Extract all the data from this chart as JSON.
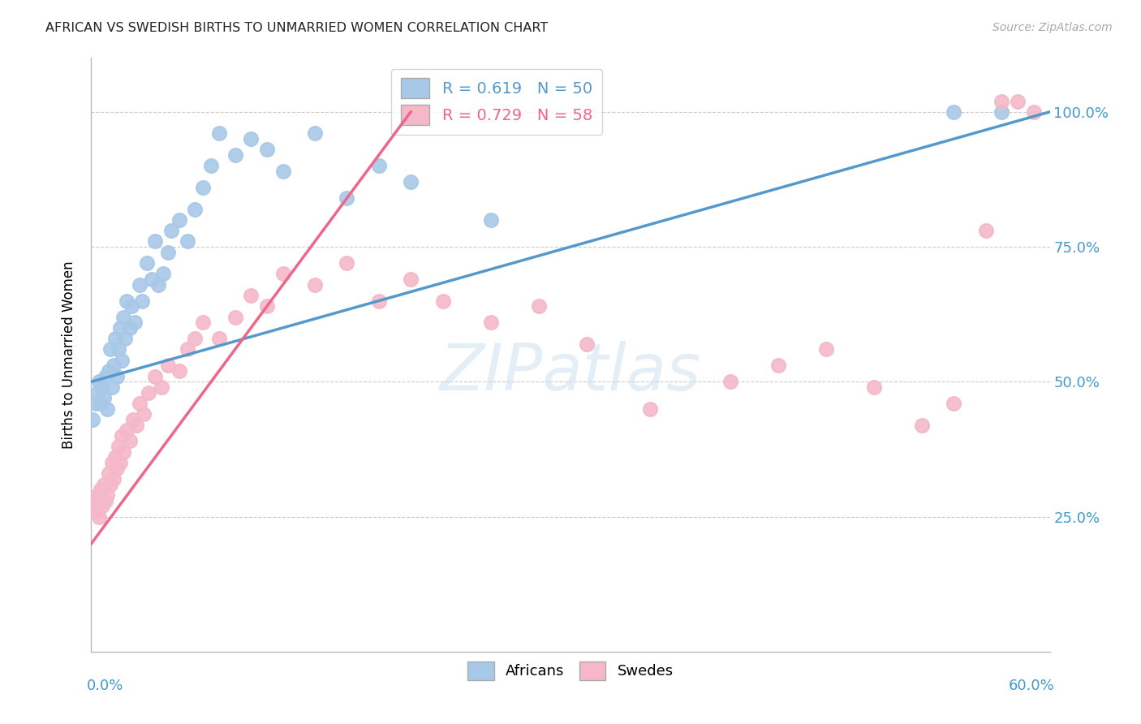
{
  "title": "AFRICAN VS SWEDISH BIRTHS TO UNMARRIED WOMEN CORRELATION CHART",
  "source": "Source: ZipAtlas.com",
  "ylabel": "Births to Unmarried Women",
  "watermark": "ZIPatlas",
  "african_color": "#a8c8e8",
  "swedish_color": "#f4b8c8",
  "line_african_color": "#5599cc",
  "line_swedish_color": "#ee6688",
  "xmin": 0.0,
  "xmax": 0.6,
  "ymin": 0.0,
  "ymax": 1.1,
  "african_x": [
    0.001,
    0.003,
    0.004,
    0.005,
    0.006,
    0.007,
    0.008,
    0.009,
    0.01,
    0.011,
    0.012,
    0.013,
    0.014,
    0.015,
    0.016,
    0.017,
    0.018,
    0.019,
    0.02,
    0.021,
    0.022,
    0.024,
    0.025,
    0.027,
    0.03,
    0.032,
    0.035,
    0.038,
    0.04,
    0.042,
    0.045,
    0.048,
    0.05,
    0.055,
    0.06,
    0.065,
    0.07,
    0.075,
    0.08,
    0.09,
    0.1,
    0.11,
    0.12,
    0.14,
    0.16,
    0.18,
    0.2,
    0.25,
    0.54,
    0.57
  ],
  "african_y": [
    0.43,
    0.46,
    0.48,
    0.5,
    0.46,
    0.49,
    0.47,
    0.51,
    0.45,
    0.52,
    0.56,
    0.49,
    0.53,
    0.58,
    0.51,
    0.56,
    0.6,
    0.54,
    0.62,
    0.58,
    0.65,
    0.6,
    0.64,
    0.61,
    0.68,
    0.65,
    0.72,
    0.69,
    0.76,
    0.68,
    0.7,
    0.74,
    0.78,
    0.8,
    0.76,
    0.82,
    0.86,
    0.9,
    0.96,
    0.92,
    0.95,
    0.93,
    0.89,
    0.96,
    0.84,
    0.9,
    0.87,
    0.8,
    1.0,
    1.0
  ],
  "swedish_x": [
    0.001,
    0.002,
    0.003,
    0.004,
    0.005,
    0.006,
    0.007,
    0.008,
    0.009,
    0.01,
    0.011,
    0.012,
    0.013,
    0.014,
    0.015,
    0.016,
    0.017,
    0.018,
    0.019,
    0.02,
    0.022,
    0.024,
    0.026,
    0.028,
    0.03,
    0.033,
    0.036,
    0.04,
    0.044,
    0.048,
    0.055,
    0.06,
    0.065,
    0.07,
    0.08,
    0.09,
    0.1,
    0.11,
    0.12,
    0.14,
    0.16,
    0.18,
    0.2,
    0.22,
    0.25,
    0.28,
    0.31,
    0.35,
    0.4,
    0.43,
    0.46,
    0.49,
    0.52,
    0.54,
    0.56,
    0.57,
    0.58,
    0.59
  ],
  "swedish_y": [
    0.28,
    0.27,
    0.26,
    0.29,
    0.25,
    0.3,
    0.27,
    0.31,
    0.28,
    0.29,
    0.33,
    0.31,
    0.35,
    0.32,
    0.36,
    0.34,
    0.38,
    0.35,
    0.4,
    0.37,
    0.41,
    0.39,
    0.43,
    0.42,
    0.46,
    0.44,
    0.48,
    0.51,
    0.49,
    0.53,
    0.52,
    0.56,
    0.58,
    0.61,
    0.58,
    0.62,
    0.66,
    0.64,
    0.7,
    0.68,
    0.72,
    0.65,
    0.69,
    0.65,
    0.61,
    0.64,
    0.57,
    0.45,
    0.5,
    0.53,
    0.56,
    0.49,
    0.42,
    0.46,
    0.78,
    1.02,
    1.02,
    1.0
  ]
}
